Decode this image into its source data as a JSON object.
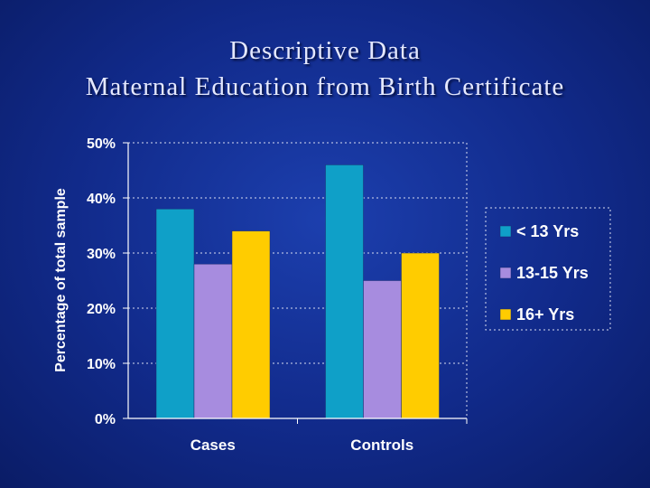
{
  "title": {
    "line1": "Descriptive Data",
    "line2": "Maternal Education from Birth Certificate"
  },
  "colors": {
    "background": "#112a8a",
    "lt13": "#0fa0c8",
    "y13to15": "#a78cdf",
    "y16plus": "#ffcc00",
    "gridline": "#d8dcf0"
  },
  "chart_data": {
    "type": "bar",
    "categories": [
      "Cases",
      "Controls"
    ],
    "series": [
      {
        "name": "< 13 Yrs",
        "values": [
          38,
          46
        ],
        "color": "#0fa0c8"
      },
      {
        "name": "13-15 Yrs",
        "values": [
          28,
          25
        ],
        "color": "#a78cdf"
      },
      {
        "name": "16+ Yrs",
        "values": [
          34,
          30
        ],
        "color": "#ffcc00"
      }
    ],
    "ylabel": "Percentage of total sample",
    "xlabel": "",
    "ylim": [
      0,
      50
    ],
    "yticks": [
      "0%",
      "10%",
      "20%",
      "30%",
      "40%",
      "50%"
    ],
    "grid": true,
    "legend": "right"
  }
}
